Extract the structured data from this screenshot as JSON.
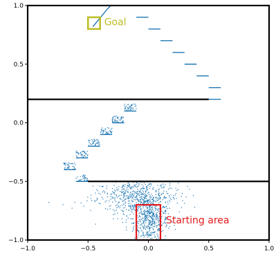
{
  "chart_data": {
    "type": "scatter",
    "title": "",
    "xlabel": "",
    "ylabel": "",
    "xlim": [
      -1.0,
      1.0
    ],
    "ylim": [
      -1.0,
      1.0
    ],
    "grid": false,
    "x_ticks": [
      -1.0,
      -0.5,
      0.0,
      0.5,
      1.0
    ],
    "x_tick_labels": [
      "−1.0",
      "−0.5",
      "0.0",
      "0.5",
      "1.0"
    ],
    "y_ticks": [
      -1.0,
      -0.5,
      0.0,
      0.5,
      1.0
    ],
    "y_tick_labels": [
      "−1.0",
      "−0.5",
      "0.0",
      "0.5",
      "1.0"
    ],
    "colors": {
      "trajectory": "#1f77b4",
      "walls": "#000000",
      "goal": "#bcbd22",
      "start": "#e31a1c"
    },
    "walls": [
      {
        "x": [
          -1.0,
          0.5
        ],
        "y": [
          0.2,
          0.2
        ]
      },
      {
        "x": [
          -0.5,
          1.0
        ],
        "y": [
          -0.5,
          -0.5
        ]
      }
    ],
    "goal_region": {
      "label": "Goal",
      "x": [
        -0.5,
        -0.4
      ],
      "y": [
        0.8,
        0.9
      ]
    },
    "start_region": {
      "label": "Starting area",
      "x": [
        -0.1,
        0.1
      ],
      "y": [
        -1.0,
        -0.7
      ]
    },
    "trajectory_line": {
      "x": [
        -0.46,
        -0.42,
        -0.38,
        -0.34,
        -0.31
      ],
      "y": [
        0.82,
        0.87,
        0.92,
        0.97,
        1.0
      ]
    },
    "steps": [
      {
        "x": [
          -0.1,
          0.0
        ],
        "y": 0.9
      },
      {
        "x": [
          0.0,
          0.1
        ],
        "y": 0.8
      },
      {
        "x": [
          0.1,
          0.2
        ],
        "y": 0.7
      },
      {
        "x": [
          0.2,
          0.3
        ],
        "y": 0.6
      },
      {
        "x": [
          0.3,
          0.4
        ],
        "y": 0.5
      },
      {
        "x": [
          0.4,
          0.5
        ],
        "y": 0.4
      },
      {
        "x": [
          0.5,
          0.6
        ],
        "y": 0.3
      },
      {
        "x": [
          0.5,
          0.6
        ],
        "y": 0.2
      },
      {
        "x": [
          -0.2,
          -0.1
        ],
        "y": 0.1
      },
      {
        "x": [
          -0.3,
          -0.2
        ],
        "y": 0.0
      },
      {
        "x": [
          -0.4,
          -0.3
        ],
        "y": -0.1
      },
      {
        "x": [
          -0.5,
          -0.4
        ],
        "y": -0.2
      },
      {
        "x": [
          -0.6,
          -0.5
        ],
        "y": -0.3
      },
      {
        "x": [
          -0.7,
          -0.6
        ],
        "y": -0.4
      },
      {
        "x": [
          -0.6,
          -0.5
        ],
        "y": -0.5
      }
    ],
    "scatter_clusters": [
      {
        "cx": 0.02,
        "cy": -0.85,
        "sx": 0.07,
        "sy": 0.09,
        "n": 380
      },
      {
        "cx": -0.1,
        "cy": -0.62,
        "sx": 0.18,
        "sy": 0.07,
        "n": 420
      },
      {
        "cx": -0.05,
        "cy": -0.72,
        "sx": 0.12,
        "sy": 0.08,
        "n": 250
      }
    ],
    "scatter_step_clusters": [
      {
        "x": [
          -0.2,
          -0.1
        ],
        "y": 0.1,
        "n": 40
      },
      {
        "x": [
          -0.3,
          -0.2
        ],
        "y": 0.0,
        "n": 40
      },
      {
        "x": [
          -0.4,
          -0.3
        ],
        "y": -0.1,
        "n": 40
      },
      {
        "x": [
          -0.5,
          -0.4
        ],
        "y": -0.2,
        "n": 40
      },
      {
        "x": [
          -0.6,
          -0.5
        ],
        "y": -0.3,
        "n": 40
      },
      {
        "x": [
          -0.7,
          -0.6
        ],
        "y": -0.4,
        "n": 40
      },
      {
        "x": [
          -0.6,
          -0.5
        ],
        "y": -0.5,
        "n": 30
      }
    ]
  }
}
